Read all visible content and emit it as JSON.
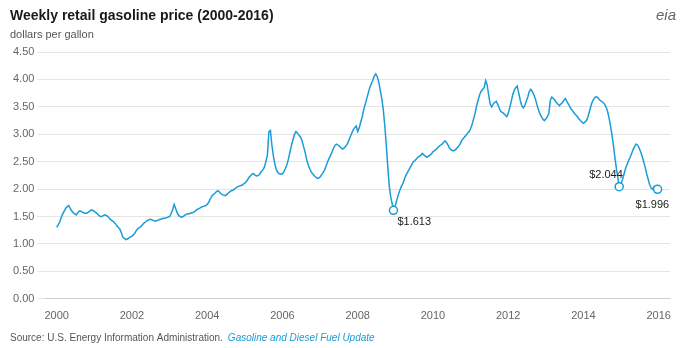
{
  "chart_data": {
    "type": "line",
    "title": "Weekly retail gasoline price (2000-2016)",
    "subtitle": "dollars per gallon",
    "logo": "eia",
    "source": "Source: U.S. Energy Information Administration.",
    "source_link": "Gasoline and Diesel Fuel Update",
    "color": "#1a9cd8",
    "grid": "y",
    "xlim": [
      1999.7,
      2016.3
    ],
    "xticks": [
      2000,
      2002,
      2004,
      2006,
      2008,
      2010,
      2012,
      2014,
      2016
    ],
    "ylim": [
      0.0,
      4.5
    ],
    "yticks": [
      {
        "value": 0.0,
        "label": "0.00"
      },
      {
        "value": 0.5,
        "label": "0.50"
      },
      {
        "value": 1.0,
        "label": "1.00"
      },
      {
        "value": 1.5,
        "label": "1.50"
      },
      {
        "value": 2.0,
        "label": "2.00"
      },
      {
        "value": 2.5,
        "label": "2.50"
      },
      {
        "value": 3.0,
        "label": "3.00"
      },
      {
        "value": 3.5,
        "label": "3.50"
      },
      {
        "value": 4.0,
        "label": "4.00"
      },
      {
        "value": 4.5,
        "label": "4.50"
      }
    ],
    "annotations": [
      {
        "x": 2008.95,
        "y": 1.613,
        "label": "$1.613"
      },
      {
        "x": 2014.95,
        "y": 2.044,
        "label": "$2.044"
      },
      {
        "x": 2015.97,
        "y": 1.996,
        "label": "$1.996"
      }
    ],
    "x": [
      2000.0,
      2000.04,
      2000.08,
      2000.12,
      2000.16,
      2000.2,
      2000.24,
      2000.28,
      2000.32,
      2000.36,
      2000.4,
      2000.44,
      2000.48,
      2000.52,
      2000.56,
      2000.6,
      2000.64,
      2000.68,
      2000.72,
      2000.76,
      2000.8,
      2000.84,
      2000.88,
      2000.92,
      2000.96,
      2001.0,
      2001.04,
      2001.08,
      2001.12,
      2001.16,
      2001.2,
      2001.24,
      2001.28,
      2001.32,
      2001.36,
      2001.4,
      2001.44,
      2001.48,
      2001.52,
      2001.56,
      2001.6,
      2001.64,
      2001.68,
      2001.72,
      2001.76,
      2001.8,
      2001.84,
      2001.88,
      2001.92,
      2001.96,
      2002.0,
      2002.04,
      2002.08,
      2002.12,
      2002.16,
      2002.2,
      2002.24,
      2002.28,
      2002.32,
      2002.36,
      2002.4,
      2002.44,
      2002.48,
      2002.52,
      2002.56,
      2002.6,
      2002.64,
      2002.68,
      2002.72,
      2002.76,
      2002.8,
      2002.84,
      2002.88,
      2002.92,
      2002.96,
      2003.0,
      2003.04,
      2003.08,
      2003.12,
      2003.16,
      2003.2,
      2003.24,
      2003.28,
      2003.32,
      2003.36,
      2003.4,
      2003.44,
      2003.48,
      2003.52,
      2003.56,
      2003.6,
      2003.64,
      2003.68,
      2003.72,
      2003.76,
      2003.8,
      2003.84,
      2003.88,
      2003.92,
      2003.96,
      2004.0,
      2004.04,
      2004.08,
      2004.12,
      2004.16,
      2004.2,
      2004.24,
      2004.28,
      2004.32,
      2004.36,
      2004.4,
      2004.44,
      2004.48,
      2004.52,
      2004.56,
      2004.6,
      2004.64,
      2004.68,
      2004.72,
      2004.76,
      2004.8,
      2004.84,
      2004.88,
      2004.92,
      2004.96,
      2005.0,
      2005.04,
      2005.08,
      2005.12,
      2005.16,
      2005.2,
      2005.24,
      2005.28,
      2005.32,
      2005.36,
      2005.4,
      2005.44,
      2005.48,
      2005.52,
      2005.56,
      2005.6,
      2005.64,
      2005.68,
      2005.72,
      2005.76,
      2005.8,
      2005.84,
      2005.88,
      2005.92,
      2005.96,
      2006.0,
      2006.04,
      2006.08,
      2006.12,
      2006.16,
      2006.2,
      2006.24,
      2006.28,
      2006.32,
      2006.36,
      2006.4,
      2006.44,
      2006.48,
      2006.52,
      2006.56,
      2006.6,
      2006.64,
      2006.68,
      2006.72,
      2006.76,
      2006.8,
      2006.84,
      2006.88,
      2006.92,
      2006.96,
      2007.0,
      2007.04,
      2007.08,
      2007.12,
      2007.16,
      2007.2,
      2007.24,
      2007.28,
      2007.32,
      2007.36,
      2007.4,
      2007.44,
      2007.48,
      2007.52,
      2007.56,
      2007.6,
      2007.64,
      2007.68,
      2007.72,
      2007.76,
      2007.8,
      2007.84,
      2007.88,
      2007.92,
      2007.96,
      2008.0,
      2008.04,
      2008.08,
      2008.12,
      2008.16,
      2008.2,
      2008.24,
      2008.28,
      2008.32,
      2008.36,
      2008.4,
      2008.44,
      2008.48,
      2008.52,
      2008.56,
      2008.6,
      2008.64,
      2008.68,
      2008.72,
      2008.76,
      2008.8,
      2008.84,
      2008.88,
      2008.92,
      2008.96,
      2009.0,
      2009.04,
      2009.08,
      2009.12,
      2009.16,
      2009.2,
      2009.24,
      2009.28,
      2009.32,
      2009.36,
      2009.4,
      2009.44,
      2009.48,
      2009.52,
      2009.56,
      2009.6,
      2009.64,
      2009.68,
      2009.72,
      2009.76,
      2009.8,
      2009.84,
      2009.88,
      2009.92,
      2009.96,
      2010.0,
      2010.04,
      2010.08,
      2010.12,
      2010.16,
      2010.2,
      2010.24,
      2010.28,
      2010.32,
      2010.36,
      2010.4,
      2010.44,
      2010.48,
      2010.52,
      2010.56,
      2010.6,
      2010.64,
      2010.68,
      2010.72,
      2010.76,
      2010.8,
      2010.84,
      2010.88,
      2010.92,
      2010.96,
      2011.0,
      2011.04,
      2011.08,
      2011.12,
      2011.16,
      2011.2,
      2011.24,
      2011.28,
      2011.32,
      2011.36,
      2011.4,
      2011.44,
      2011.48,
      2011.52,
      2011.56,
      2011.6,
      2011.64,
      2011.68,
      2011.72,
      2011.76,
      2011.8,
      2011.84,
      2011.88,
      2011.92,
      2011.96,
      2012.0,
      2012.04,
      2012.08,
      2012.12,
      2012.16,
      2012.2,
      2012.24,
      2012.28,
      2012.32,
      2012.36,
      2012.4,
      2012.44,
      2012.48,
      2012.52,
      2012.56,
      2012.6,
      2012.64,
      2012.68,
      2012.72,
      2012.76,
      2012.8,
      2012.84,
      2012.88,
      2012.92,
      2012.96,
      2013.0,
      2013.04,
      2013.08,
      2013.12,
      2013.16,
      2013.2,
      2013.24,
      2013.28,
      2013.32,
      2013.36,
      2013.4,
      2013.44,
      2013.48,
      2013.52,
      2013.56,
      2013.6,
      2013.64,
      2013.68,
      2013.72,
      2013.76,
      2013.8,
      2013.84,
      2013.88,
      2013.92,
      2013.96,
      2014.0,
      2014.04,
      2014.08,
      2014.12,
      2014.16,
      2014.2,
      2014.24,
      2014.28,
      2014.32,
      2014.36,
      2014.4,
      2014.44,
      2014.48,
      2014.52,
      2014.56,
      2014.6,
      2014.64,
      2014.68,
      2014.72,
      2014.76,
      2014.8,
      2014.84,
      2014.88,
      2014.92,
      2014.95,
      2015.0,
      2015.04,
      2015.08,
      2015.12,
      2015.16,
      2015.2,
      2015.24,
      2015.28,
      2015.32,
      2015.36,
      2015.4,
      2015.44,
      2015.48,
      2015.52,
      2015.56,
      2015.6,
      2015.64,
      2015.68,
      2015.72,
      2015.76,
      2015.8,
      2015.84,
      2015.88,
      2015.9,
      2015.92,
      2015.95,
      2015.97,
      2016.0
    ],
    "values": [
      1.301,
      1.35,
      1.4,
      1.48,
      1.55,
      1.6,
      1.65,
      1.68,
      1.7,
      1.65,
      1.6,
      1.57,
      1.55,
      1.53,
      1.57,
      1.6,
      1.6,
      1.58,
      1.57,
      1.56,
      1.56,
      1.58,
      1.6,
      1.62,
      1.61,
      1.6,
      1.57,
      1.55,
      1.52,
      1.5,
      1.5,
      1.52,
      1.53,
      1.52,
      1.5,
      1.47,
      1.44,
      1.42,
      1.4,
      1.37,
      1.33,
      1.3,
      1.27,
      1.2,
      1.12,
      1.1,
      1.08,
      1.09,
      1.11,
      1.13,
      1.14,
      1.17,
      1.2,
      1.25,
      1.28,
      1.3,
      1.32,
      1.35,
      1.38,
      1.4,
      1.42,
      1.44,
      1.45,
      1.44,
      1.43,
      1.42,
      1.42,
      1.43,
      1.44,
      1.45,
      1.46,
      1.47,
      1.47,
      1.48,
      1.49,
      1.5,
      1.55,
      1.62,
      1.72,
      1.65,
      1.57,
      1.52,
      1.5,
      1.49,
      1.5,
      1.52,
      1.54,
      1.55,
      1.55,
      1.56,
      1.57,
      1.58,
      1.6,
      1.62,
      1.64,
      1.65,
      1.67,
      1.68,
      1.69,
      1.7,
      1.72,
      1.76,
      1.82,
      1.87,
      1.9,
      1.92,
      1.95,
      1.97,
      1.95,
      1.92,
      1.9,
      1.89,
      1.88,
      1.9,
      1.93,
      1.95,
      1.97,
      1.98,
      2.0,
      2.02,
      2.04,
      2.05,
      2.06,
      2.07,
      2.09,
      2.11,
      2.14,
      2.18,
      2.22,
      2.25,
      2.28,
      2.28,
      2.25,
      2.24,
      2.25,
      2.28,
      2.32,
      2.35,
      2.4,
      2.5,
      2.62,
      3.05,
      3.07,
      2.8,
      2.6,
      2.45,
      2.35,
      2.3,
      2.28,
      2.27,
      2.28,
      2.32,
      2.38,
      2.45,
      2.55,
      2.68,
      2.8,
      2.9,
      3.0,
      3.05,
      3.02,
      2.98,
      2.95,
      2.88,
      2.78,
      2.68,
      2.55,
      2.45,
      2.38,
      2.32,
      2.28,
      2.25,
      2.22,
      2.2,
      2.2,
      2.22,
      2.26,
      2.3,
      2.35,
      2.42,
      2.5,
      2.56,
      2.62,
      2.68,
      2.75,
      2.8,
      2.82,
      2.8,
      2.78,
      2.75,
      2.73,
      2.75,
      2.78,
      2.82,
      2.88,
      2.95,
      3.02,
      3.08,
      3.12,
      3.15,
      3.05,
      3.12,
      3.22,
      3.32,
      3.45,
      3.55,
      3.65,
      3.75,
      3.85,
      3.92,
      3.98,
      4.06,
      4.1,
      4.05,
      3.95,
      3.8,
      3.65,
      3.45,
      3.15,
      2.8,
      2.4,
      2.05,
      1.85,
      1.72,
      1.65,
      1.7,
      1.8,
      1.9,
      1.98,
      2.05,
      2.1,
      2.18,
      2.25,
      2.3,
      2.35,
      2.4,
      2.45,
      2.5,
      2.52,
      2.55,
      2.58,
      2.6,
      2.62,
      2.65,
      2.62,
      2.6,
      2.58,
      2.6,
      2.62,
      2.64,
      2.68,
      2.7,
      2.72,
      2.75,
      2.78,
      2.8,
      2.82,
      2.85,
      2.88,
      2.85,
      2.8,
      2.75,
      2.72,
      2.7,
      2.7,
      2.72,
      2.75,
      2.78,
      2.82,
      2.88,
      2.92,
      2.95,
      2.98,
      3.02,
      3.05,
      3.1,
      3.18,
      3.28,
      3.38,
      3.52,
      3.62,
      3.72,
      3.78,
      3.82,
      3.85,
      3.98,
      3.9,
      3.72,
      3.55,
      3.5,
      3.55,
      3.58,
      3.6,
      3.55,
      3.48,
      3.42,
      3.4,
      3.38,
      3.35,
      3.32,
      3.38,
      3.48,
      3.6,
      3.72,
      3.8,
      3.85,
      3.88,
      3.75,
      3.62,
      3.52,
      3.48,
      3.52,
      3.6,
      3.68,
      3.78,
      3.82,
      3.78,
      3.72,
      3.65,
      3.55,
      3.45,
      3.38,
      3.32,
      3.28,
      3.25,
      3.28,
      3.32,
      3.38,
      3.62,
      3.68,
      3.65,
      3.62,
      3.58,
      3.55,
      3.52,
      3.55,
      3.58,
      3.62,
      3.65,
      3.6,
      3.55,
      3.5,
      3.45,
      3.42,
      3.38,
      3.35,
      3.32,
      3.28,
      3.25,
      3.22,
      3.2,
      3.22,
      3.25,
      3.32,
      3.42,
      3.52,
      3.6,
      3.65,
      3.68,
      3.68,
      3.65,
      3.62,
      3.6,
      3.58,
      3.55,
      3.5,
      3.42,
      3.3,
      3.15,
      2.98,
      2.78,
      2.55,
      2.35,
      2.18,
      2.044,
      2.1,
      2.18,
      2.28,
      2.38,
      2.45,
      2.52,
      2.58,
      2.65,
      2.72,
      2.78,
      2.82,
      2.8,
      2.75,
      2.68,
      2.6,
      2.5,
      2.4,
      2.28,
      2.18,
      2.08,
      2.02,
      2.0,
      2.05,
      2.044,
      2.02,
      2.0,
      1.996,
      1.98
    ]
  }
}
